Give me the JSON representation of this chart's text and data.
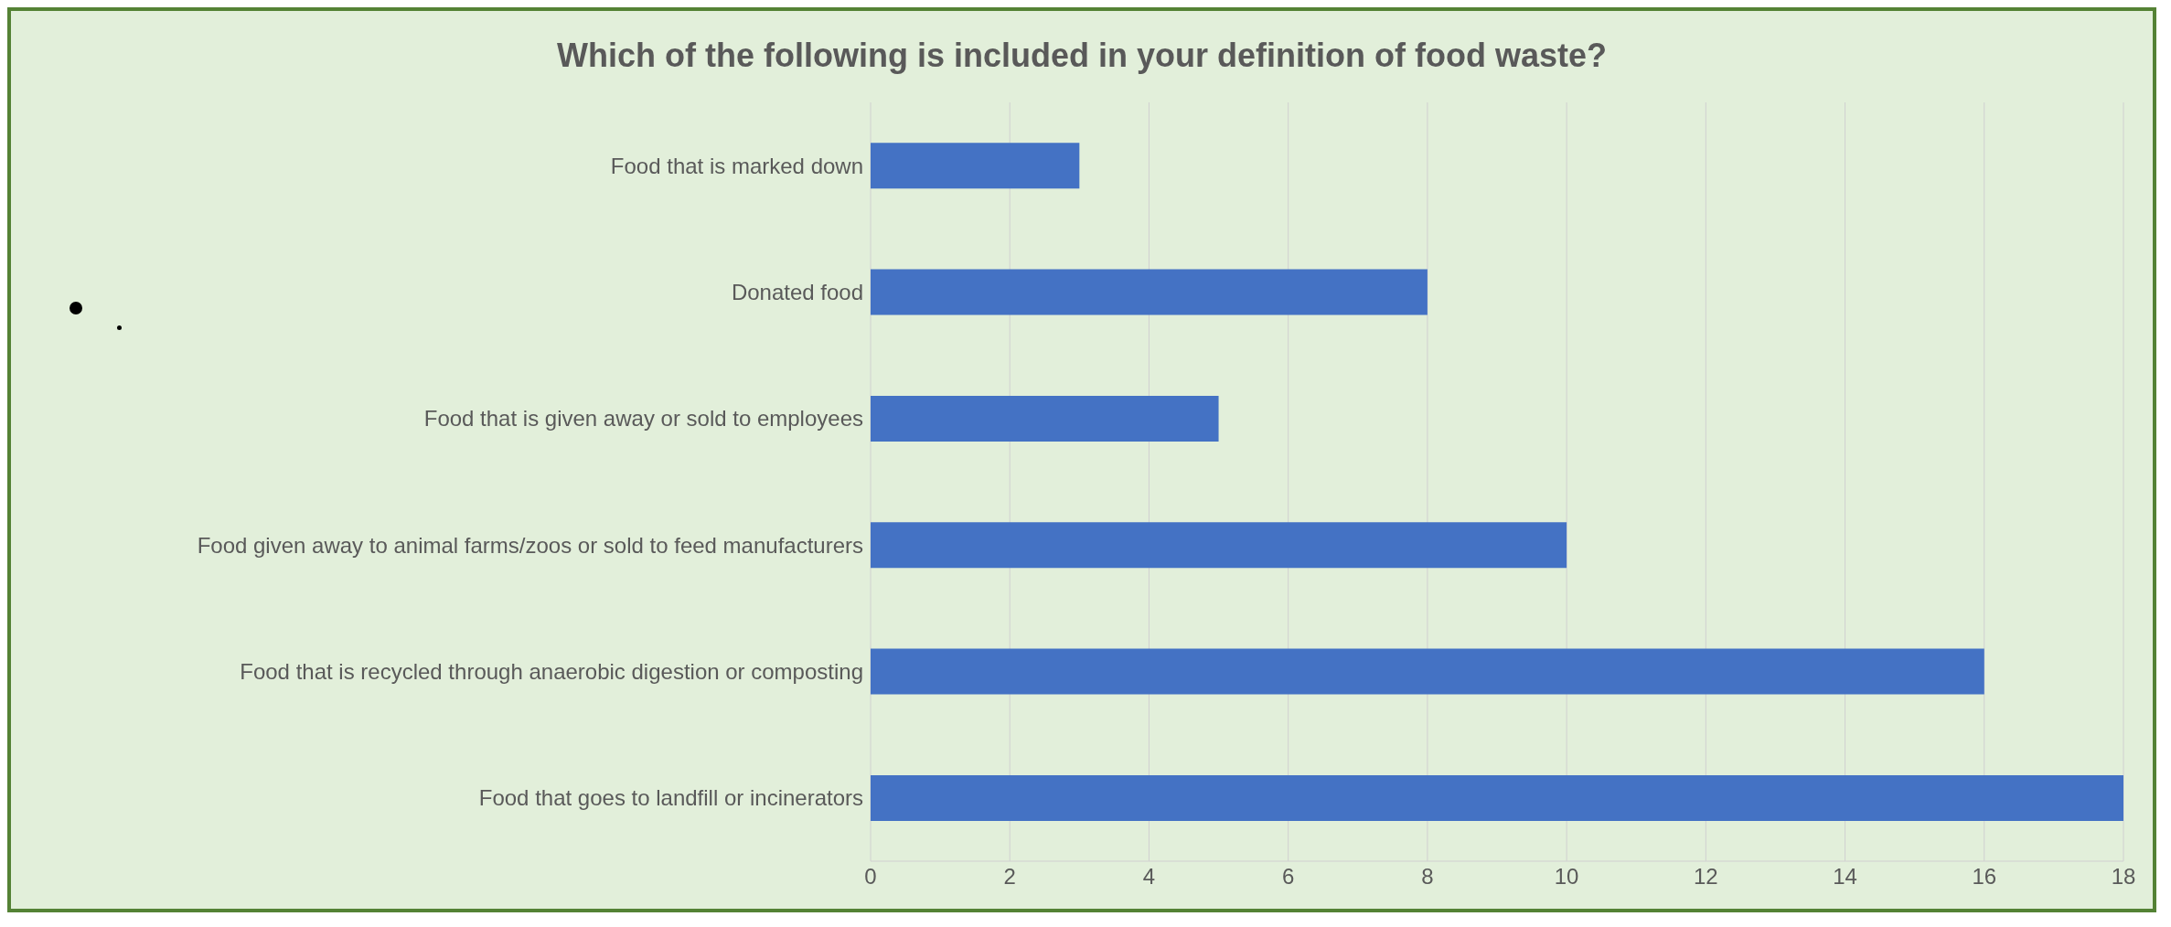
{
  "chart_data": {
    "type": "bar",
    "orientation": "horizontal",
    "title": "Which of the following is included in your definition of food waste?",
    "categories": [
      "Food that is marked down",
      "Donated food",
      "Food that is given away or sold to employees",
      "Food given away to animal farms/zoos or sold to feed manufacturers",
      "Food that is recycled through anaerobic digestion or composting",
      "Food that goes to landfill or incinerators"
    ],
    "values": [
      3,
      8,
      5,
      10,
      16,
      18
    ],
    "color": "#4472c4",
    "xlim": [
      0,
      18
    ],
    "xticks": [
      0,
      2,
      4,
      6,
      8,
      10,
      12,
      14,
      16,
      18
    ],
    "grid": "x"
  }
}
